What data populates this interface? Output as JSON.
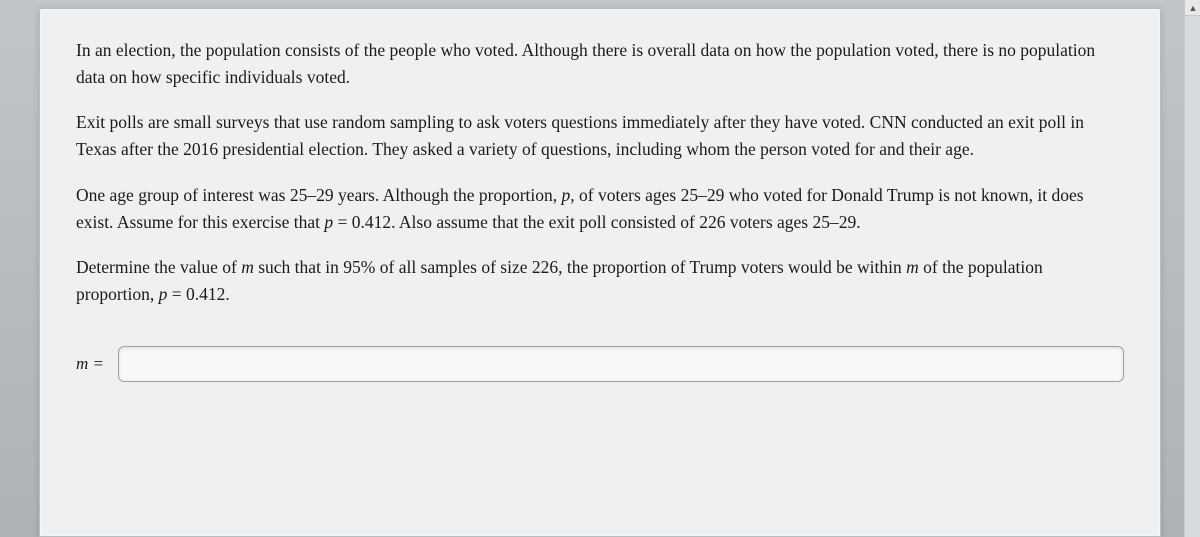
{
  "question": {
    "paragraphs": [
      "In an election, the population consists of the people who voted. Although there is overall data on how the population voted, there is no population data on how specific individuals voted.",
      "Exit polls are small surveys that use random sampling to ask voters questions immediately after they have voted. CNN conducted an exit poll in Texas after the 2016 presidential election. They asked a variety of questions, including whom the person voted for and their age."
    ],
    "para3_part1": "One age group of interest was 25–29 years. Although the proportion, ",
    "para3_p": "p",
    "para3_part2": ", of voters ages 25–29 who voted for Donald Trump is not known, it does exist. Assume for this exercise that ",
    "para3_p2": "p",
    "para3_part3": " = 0.412. Also assume that the exit poll consisted of 226 voters ages 25–29.",
    "para4_part1": "Determine the value of ",
    "para4_m": "m",
    "para4_part2": " such that in 95% of all samples of size 226, the proportion of Trump voters would be within ",
    "para4_m2": "m",
    "para4_part3": " of the population proportion, ",
    "para4_p": "p",
    "para4_part4": " = 0.412."
  },
  "answer": {
    "label": "m =",
    "value": "",
    "placeholder": ""
  },
  "colors": {
    "card_bg": "#eef0f1",
    "page_bg": "#b8bcc0",
    "text": "#1b1b1b",
    "input_border": "#9ea3a8"
  }
}
